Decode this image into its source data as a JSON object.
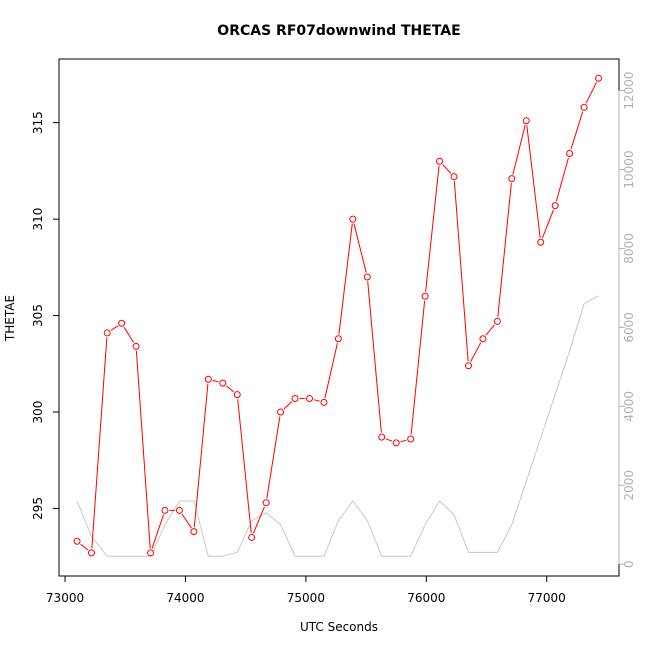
{
  "chart_data": {
    "type": "line",
    "title": "ORCAS RF07downwind THETAE",
    "xlabel": "UTC Seconds",
    "ylabel": "THETAE",
    "xlim": [
      72950,
      77600
    ],
    "ylim": [
      291.5,
      318.3
    ],
    "y2lim": [
      -300,
      12800
    ],
    "x_ticks": [
      73000,
      74000,
      75000,
      76000,
      77000
    ],
    "y_ticks": [
      295,
      300,
      305,
      310,
      315
    ],
    "y2_ticks": [
      0,
      2000,
      4000,
      6000,
      8000,
      10000,
      12000
    ],
    "grid": false,
    "series": [
      {
        "color": "#ff0000",
        "axis": "left",
        "style": "line-points",
        "x": [
          73100,
          73220,
          73350,
          73470,
          73590,
          73710,
          73830,
          73950,
          74070,
          74190,
          74310,
          74430,
          74550,
          74670,
          74790,
          74910,
          75030,
          75150,
          75270,
          75390,
          75510,
          75630,
          75750,
          75870,
          75990,
          76110,
          76230,
          76350,
          76470,
          76590,
          76710,
          76830,
          76950,
          77070,
          77190,
          77310,
          77430
        ],
        "values": [
          293.3,
          292.7,
          304.1,
          304.6,
          303.4,
          292.7,
          294.9,
          294.9,
          293.8,
          301.7,
          301.5,
          300.9,
          293.5,
          295.3,
          300.0,
          300.7,
          300.7,
          300.5,
          303.8,
          310.0,
          307.0,
          298.7,
          298.4,
          298.6,
          306.0,
          313.0,
          312.2,
          302.4,
          303.8,
          304.7,
          312.1,
          315.1,
          308.8,
          310.7,
          313.4,
          315.8,
          317.3
        ]
      },
      {
        "color": "#c8c8c8",
        "axis": "right",
        "style": "line",
        "x": [
          73100,
          73220,
          73350,
          73470,
          73590,
          73710,
          73830,
          73950,
          74070,
          74190,
          74310,
          74430,
          74550,
          74670,
          74790,
          74910,
          75030,
          75150,
          75270,
          75390,
          75510,
          75630,
          75750,
          75870,
          75990,
          76110,
          76230,
          76350,
          76470,
          76590,
          76710,
          76830,
          76950,
          77070,
          77190,
          77310,
          77430
        ],
        "values": [
          1600,
          700,
          200,
          200,
          200,
          200,
          1000,
          1600,
          1600,
          200,
          200,
          300,
          1100,
          1300,
          1000,
          200,
          200,
          200,
          1100,
          1600,
          1100,
          200,
          200,
          200,
          1000,
          1600,
          1250,
          300,
          300,
          300,
          1000,
          2100,
          3200,
          4300,
          5400,
          6600,
          6800
        ]
      }
    ]
  }
}
